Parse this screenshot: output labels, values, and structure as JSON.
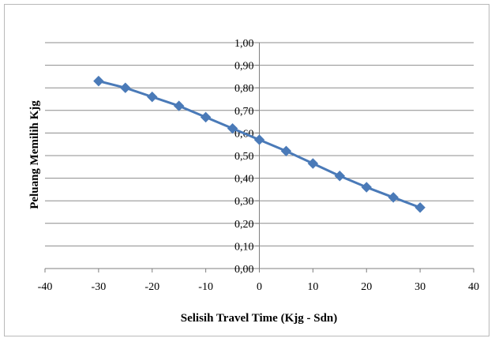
{
  "chart_data": {
    "type": "line",
    "title": "",
    "xlabel": "Selisih Travel Time (Kjg - Sdn)",
    "ylabel": "Peluang Memilih Kjg",
    "xlim": [
      -40,
      40
    ],
    "ylim": [
      0,
      1
    ],
    "x_ticks": [
      "-40",
      "-30",
      "-20",
      "-10",
      "0",
      "10",
      "20",
      "30",
      "40"
    ],
    "y_ticks": [
      "0,00",
      "0,10",
      "0,20",
      "0,30",
      "0,40",
      "0,50",
      "0,60",
      "0,70",
      "0,80",
      "0,90",
      "1,00"
    ],
    "grid": "horizontal",
    "legend": "none",
    "series": [
      {
        "color": "#4a7ab8",
        "marker": "diamond",
        "x": [
          -30,
          -25,
          -20,
          -15,
          -10,
          -5,
          0,
          5,
          10,
          15,
          20,
          25,
          30
        ],
        "y": [
          0.83,
          0.8,
          0.76,
          0.72,
          0.67,
          0.62,
          0.57,
          0.52,
          0.465,
          0.41,
          0.36,
          0.315,
          0.27
        ]
      }
    ]
  }
}
